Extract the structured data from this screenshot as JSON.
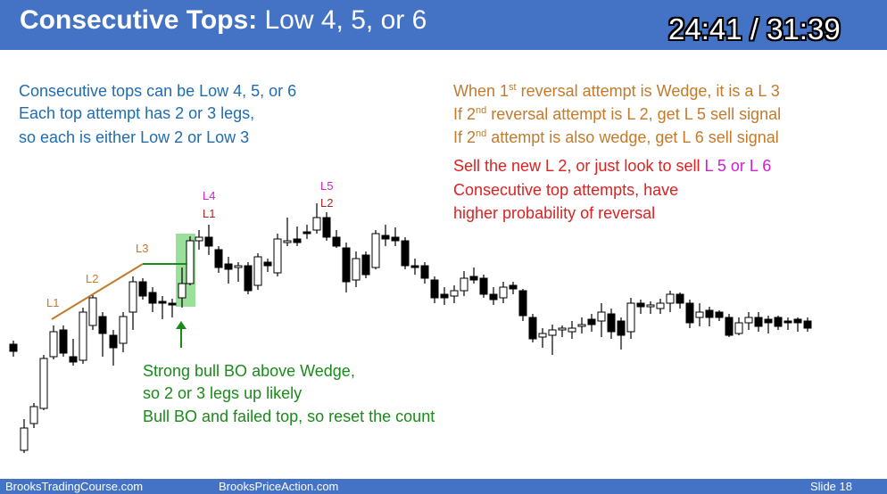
{
  "header": {
    "title_bold": "Consecutive Tops:",
    "title_rest": " Low 4, 5, or 6",
    "timer": "24:41 / 31:39"
  },
  "left_notes": [
    "Consecutive tops can be Low 4, 5, or 6",
    "Each top attempt has 2 or 3 legs,",
    "so each is either Low 2 or Low 3"
  ],
  "right_notes": {
    "line1_a": "When 1",
    "line1_sup": "st",
    "line1_b": " reversal attempt is Wedge, it is a L 3",
    "line2_a": "If 2",
    "line2_sup": "nd",
    "line2_b": " reversal attempt is L 2, get L 5 sell signal",
    "line3_a": "If 2",
    "line3_sup": "nd",
    "line3_b": " attempt is also wedge, get L 6 sell signal",
    "line4_a": "Sell the new L 2, or just look to sell ",
    "line4_b": "L 5 or L 6",
    "line5": "Consecutive top attempts, have",
    "line6": "higher probability of reversal"
  },
  "bottom_notes": [
    "Strong bull BO above Wedge,",
    "so 2 or 3 legs up likely",
    "Bull BO and failed top, so reset the count"
  ],
  "chart_labels": {
    "l1": "L1",
    "l2": "L2",
    "l3": "L3",
    "l4": "L4",
    "l1b": "L1",
    "l5": "L5",
    "l2b": "L2"
  },
  "footer": {
    "left": "BrooksTradingCourse.com",
    "mid": "BrooksPriceAction.com",
    "right": "Slide  18"
  },
  "colors": {
    "header_bg": "#4472c4",
    "orange": "#c27a2c",
    "green": "#1a8a1a",
    "red": "#e02020",
    "magenta": "#d020d0",
    "blue": "#1f6cb0"
  }
}
